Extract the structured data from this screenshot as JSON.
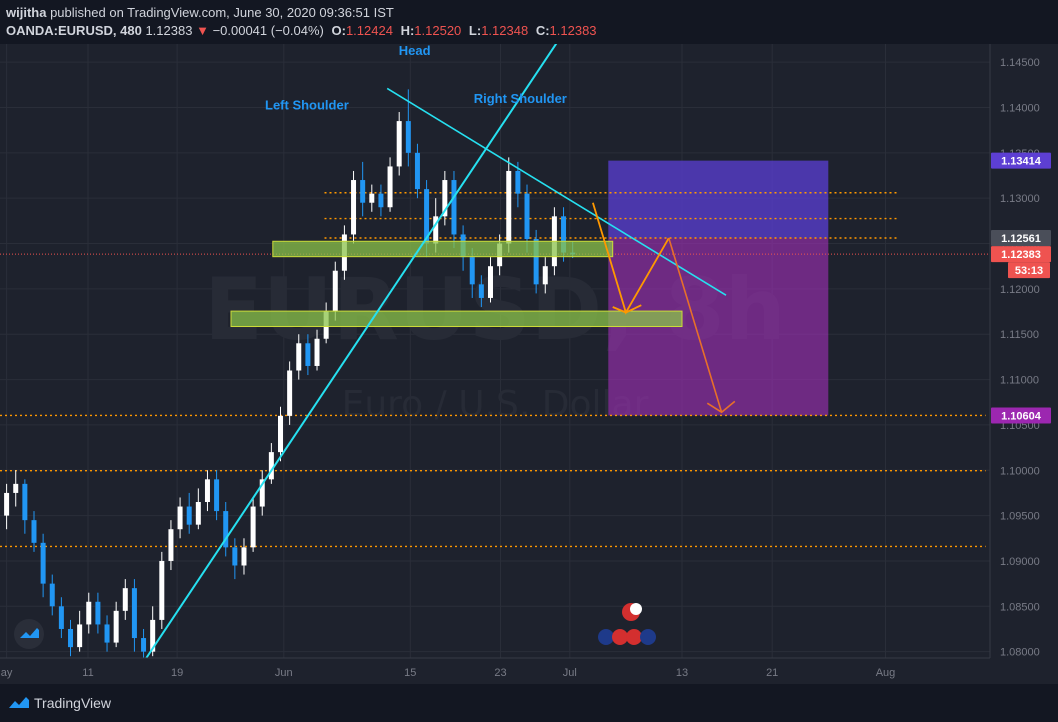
{
  "header": {
    "author": "wijitha",
    "published_text": "published on TradingView.com, June 30, 2020 09:36:51 IST",
    "symbol": "OANDA:EURUSD, 480",
    "last": "1.12383",
    "change": "−0.00041 (−0.04%)",
    "o_label": "O:",
    "o": "1.12424",
    "h_label": "H:",
    "h": "1.12520",
    "l_label": "L:",
    "l": "1.12348",
    "c_label": "C:",
    "c": "1.12383"
  },
  "footer": {
    "brand": "TradingView"
  },
  "colors": {
    "bull": "#ffffff",
    "bear": "#2196f3",
    "trend": "#26e0f0",
    "level": "#ff9800",
    "zone": "#8bc34a"
  },
  "chart_data": {
    "type": "candlestick",
    "watermark_symbol": "EURUSD, 8h",
    "watermark_name": "Euro / U.S. Dollar",
    "ylim": [
      1.0793,
      1.147
    ],
    "xlim": [
      0,
      90
    ],
    "y_ticks": [
      "1.14500",
      "1.14000",
      "1.13500",
      "1.13000",
      "1.12500",
      "1.12000",
      "1.11500",
      "1.11000",
      "1.10500",
      "1.10000",
      "1.09500",
      "1.09000",
      "1.08500",
      "1.08000"
    ],
    "x_ticks": [
      {
        "label": "ay",
        "x": 0.6
      },
      {
        "label": "11",
        "x": 8
      },
      {
        "label": "19",
        "x": 16.1
      },
      {
        "label": "Jun",
        "x": 25.8
      },
      {
        "label": "15",
        "x": 37.3
      },
      {
        "label": "23",
        "x": 45.5
      },
      {
        "label": "Jul",
        "x": 51.8
      },
      {
        "label": "13",
        "x": 62
      },
      {
        "label": "21",
        "x": 70.2
      },
      {
        "label": "Aug",
        "x": 80.5
      }
    ],
    "price_labels": [
      {
        "value": "1.13414",
        "color": "#5d3fd3"
      },
      {
        "value": "1.12561",
        "color": "#4a4e59"
      },
      {
        "value": "1.12383",
        "color": "#ef5350"
      },
      {
        "value": "53:13",
        "color": "#ef5350"
      },
      {
        "value": "1.10604",
        "color": "#9c27b0"
      }
    ],
    "annotations": [
      "Head",
      "Left Shoulder",
      "Right Shoulder"
    ],
    "candles": [
      [
        1.095,
        1.0975,
        1.0935,
        1.0985
      ],
      [
        1.0975,
        1.0985,
        1.096,
        1.1
      ],
      [
        1.0985,
        1.0945,
        1.093,
        1.099
      ],
      [
        1.0945,
        1.092,
        1.091,
        1.0955
      ],
      [
        1.092,
        1.0875,
        1.086,
        1.093
      ],
      [
        1.0875,
        1.085,
        1.084,
        1.0885
      ],
      [
        1.085,
        1.0825,
        1.0815,
        1.086
      ],
      [
        1.0825,
        1.0805,
        1.0795,
        1.0835
      ],
      [
        1.0805,
        1.083,
        1.08,
        1.0845
      ],
      [
        1.083,
        1.0855,
        1.082,
        1.0865
      ],
      [
        1.0855,
        1.083,
        1.082,
        1.0865
      ],
      [
        1.083,
        1.081,
        1.08,
        1.084
      ],
      [
        1.081,
        1.0845,
        1.0805,
        1.0855
      ],
      [
        1.0845,
        1.087,
        1.0835,
        1.088
      ],
      [
        1.087,
        1.0815,
        1.08,
        1.088
      ],
      [
        1.0815,
        1.08,
        1.079,
        1.0825
      ],
      [
        1.08,
        1.0835,
        1.0795,
        1.085
      ],
      [
        1.0835,
        1.09,
        1.0825,
        1.091
      ],
      [
        1.09,
        1.0935,
        1.089,
        1.0945
      ],
      [
        1.0935,
        1.096,
        1.0925,
        1.097
      ],
      [
        1.096,
        1.094,
        1.093,
        1.0975
      ],
      [
        1.094,
        1.0965,
        1.0935,
        1.098
      ],
      [
        1.0965,
        1.099,
        1.0955,
        1.1
      ],
      [
        1.099,
        1.0955,
        1.0945,
        1.1
      ],
      [
        1.0955,
        1.0915,
        1.0905,
        1.0965
      ],
      [
        1.0915,
        1.0895,
        1.088,
        1.0925
      ],
      [
        1.0895,
        1.0915,
        1.0885,
        1.0925
      ],
      [
        1.0915,
        1.096,
        1.091,
        1.097
      ],
      [
        1.096,
        1.099,
        1.095,
        1.1
      ],
      [
        1.099,
        1.102,
        1.0985,
        1.103
      ],
      [
        1.102,
        1.106,
        1.101,
        1.107
      ],
      [
        1.106,
        1.111,
        1.105,
        1.112
      ],
      [
        1.111,
        1.114,
        1.11,
        1.115
      ],
      [
        1.114,
        1.1115,
        1.1105,
        1.115
      ],
      [
        1.1115,
        1.1145,
        1.111,
        1.1155
      ],
      [
        1.1145,
        1.1175,
        1.114,
        1.1185
      ],
      [
        1.1175,
        1.122,
        1.1165,
        1.123
      ],
      [
        1.122,
        1.126,
        1.121,
        1.127
      ],
      [
        1.126,
        1.132,
        1.125,
        1.133
      ],
      [
        1.132,
        1.1295,
        1.128,
        1.134
      ],
      [
        1.1295,
        1.1305,
        1.1285,
        1.1315
      ],
      [
        1.1305,
        1.129,
        1.128,
        1.1315
      ],
      [
        1.129,
        1.1335,
        1.1285,
        1.1345
      ],
      [
        1.1335,
        1.1385,
        1.1325,
        1.1395
      ],
      [
        1.1385,
        1.135,
        1.1335,
        1.142
      ],
      [
        1.135,
        1.131,
        1.13,
        1.136
      ],
      [
        1.131,
        1.125,
        1.1235,
        1.132
      ],
      [
        1.125,
        1.128,
        1.124,
        1.13
      ],
      [
        1.128,
        1.132,
        1.127,
        1.133
      ],
      [
        1.132,
        1.126,
        1.1245,
        1.133
      ],
      [
        1.126,
        1.1235,
        1.122,
        1.127
      ],
      [
        1.1235,
        1.1205,
        1.119,
        1.1245
      ],
      [
        1.1205,
        1.119,
        1.118,
        1.1215
      ],
      [
        1.119,
        1.1225,
        1.1185,
        1.1235
      ],
      [
        1.1225,
        1.125,
        1.1215,
        1.126
      ],
      [
        1.125,
        1.133,
        1.124,
        1.1345
      ],
      [
        1.133,
        1.1305,
        1.129,
        1.134
      ],
      [
        1.1305,
        1.1255,
        1.124,
        1.1315
      ],
      [
        1.1255,
        1.1205,
        1.1195,
        1.1265
      ],
      [
        1.1205,
        1.1225,
        1.1195,
        1.1235
      ],
      [
        1.1225,
        1.128,
        1.1215,
        1.129
      ],
      [
        1.128,
        1.124,
        1.123,
        1.129
      ],
      [
        1.124,
        1.1238,
        1.1234,
        1.1252
      ]
    ]
  }
}
